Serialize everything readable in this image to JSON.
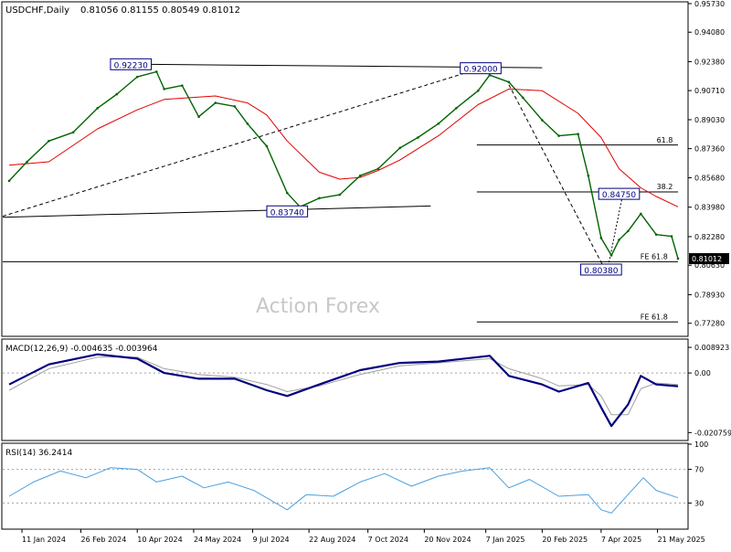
{
  "header": {
    "symbol": "USDCHF,Daily",
    "ohlc": "0.81056 0.81155 0.80549 0.81012"
  },
  "watermark": "Action Forex",
  "colors": {
    "price": "#006400",
    "ma": "#e00000",
    "macd_line": "#000080",
    "macd_signal": "#a0a0a0",
    "rsi": "#4aa0e0",
    "grid_text": "#000000",
    "price_label_bg": "#000000",
    "annotation_box": "#000080"
  },
  "chart_data": [
    {
      "type": "line",
      "panel": "price",
      "title": "USDCHF,Daily",
      "y_ticks": [
        "0.95730",
        "0.94080",
        "0.92380",
        "0.90710",
        "0.89030",
        "0.87360",
        "0.85680",
        "0.83980",
        "0.82280",
        "0.80630",
        "0.78930",
        "0.77280"
      ],
      "y_tick_values": [
        0.9573,
        0.9408,
        0.9238,
        0.9071,
        0.8903,
        0.8736,
        0.8568,
        0.8398,
        0.8228,
        0.8063,
        0.7893,
        0.7728
      ],
      "ylim": [
        0.7658,
        0.9578
      ],
      "x_ticks": [
        "11 Jan 2024",
        "26 Feb 2024",
        "10 Apr 2024",
        "24 May 2024",
        "9 Jul 2024",
        "22 Aug 2024",
        "7 Oct 2024",
        "20 Nov 2024",
        "7 Jan 2025",
        "20 Feb 2025",
        "7 Apr 2025",
        "21 May 2025"
      ],
      "current_price_label": "0.81012",
      "series": [
        {
          "role": "price",
          "x": [
            "2024-01-01",
            "2024-01-15",
            "2024-02-01",
            "2024-02-20",
            "2024-03-10",
            "2024-03-25",
            "2024-04-10",
            "2024-04-25",
            "2024-05-01",
            "2024-05-15",
            "2024-05-28",
            "2024-06-10",
            "2024-06-25",
            "2024-07-05",
            "2024-07-20",
            "2024-08-05",
            "2024-08-15",
            "2024-08-30",
            "2024-09-15",
            "2024-10-01",
            "2024-10-15",
            "2024-11-01",
            "2024-11-15",
            "2024-12-01",
            "2024-12-15",
            "2025-01-01",
            "2025-01-10",
            "2025-01-25",
            "2025-02-05",
            "2025-02-20",
            "2025-03-05",
            "2025-03-20",
            "2025-03-28",
            "2025-04-07",
            "2025-04-15",
            "2025-04-21",
            "2025-04-28",
            "2025-05-08",
            "2025-05-20",
            "2025-06-01",
            "2025-06-06"
          ],
          "values": [
            0.855,
            0.866,
            0.878,
            0.883,
            0.897,
            0.905,
            0.915,
            0.918,
            0.908,
            0.91,
            0.892,
            0.9,
            0.898,
            0.888,
            0.875,
            0.848,
            0.84,
            0.845,
            0.847,
            0.858,
            0.862,
            0.874,
            0.88,
            0.888,
            0.897,
            0.907,
            0.916,
            0.912,
            0.903,
            0.89,
            0.881,
            0.882,
            0.858,
            0.822,
            0.812,
            0.821,
            0.826,
            0.836,
            0.824,
            0.823,
            0.81012
          ]
        },
        {
          "role": "moving-average",
          "x": [
            "2024-01-01",
            "2024-02-01",
            "2024-03-10",
            "2024-04-10",
            "2024-05-01",
            "2024-06-10",
            "2024-07-05",
            "2024-07-20",
            "2024-08-05",
            "2024-08-30",
            "2024-09-15",
            "2024-10-01",
            "2024-10-15",
            "2024-11-01",
            "2024-12-01",
            "2025-01-01",
            "2025-01-25",
            "2025-02-20",
            "2025-03-20",
            "2025-04-07",
            "2025-04-21",
            "2025-05-08",
            "2025-05-20",
            "2025-06-06"
          ],
          "values": [
            0.864,
            0.866,
            0.885,
            0.896,
            0.902,
            0.904,
            0.9,
            0.893,
            0.878,
            0.86,
            0.856,
            0.857,
            0.861,
            0.867,
            0.881,
            0.899,
            0.908,
            0.907,
            0.894,
            0.88,
            0.862,
            0.851,
            0.846,
            0.84
          ]
        }
      ],
      "annotations": [
        {
          "text": "0.92230",
          "x": "2024-04-05",
          "y": 0.9223,
          "kind": "price-box"
        },
        {
          "text": "0.92000",
          "x": "2025-01-03",
          "y": 0.92,
          "kind": "price-box"
        },
        {
          "text": "0.83740",
          "x": "2024-08-05",
          "y": 0.8374,
          "kind": "price-box"
        },
        {
          "text": "0.84750",
          "x": "2025-04-21",
          "y": 0.8475,
          "kind": "price-box"
        },
        {
          "text": "0.80380",
          "x": "2025-04-07",
          "y": 0.8038,
          "kind": "price-box"
        },
        {
          "text": "61.8",
          "x": "2025-06-02",
          "y": 0.8772,
          "kind": "fibo-label"
        },
        {
          "text": "38.2",
          "x": "2025-06-02",
          "y": 0.8503,
          "kind": "fibo-label"
        },
        {
          "text": "FE 61.8",
          "x": "2025-05-29",
          "y": 0.8099,
          "kind": "fibo-label"
        },
        {
          "text": "FE 61.8",
          "x": "2025-05-29",
          "y": 0.7751,
          "kind": "fibo-label"
        }
      ],
      "reference_lines": [
        {
          "from": [
            "2024-04-10",
            0.9223
          ],
          "to": [
            "2025-02-20",
            0.9203
          ],
          "style": "solid",
          "color": "#000000"
        },
        {
          "from": [
            "2023-12-27",
            0.834
          ],
          "to": [
            "2024-11-25",
            0.8405
          ],
          "style": "solid",
          "color": "#000000"
        },
        {
          "from": [
            "2023-12-27",
            0.8346
          ],
          "to": [
            "2025-01-03",
            0.92
          ],
          "style": "dashed",
          "color": "#000000"
        },
        {
          "from": [
            "2025-01-25",
            0.9105
          ],
          "to": [
            "2025-04-10",
            0.8038
          ],
          "style": "dashed",
          "color": "#000000"
        },
        {
          "from": [
            "2025-04-12",
            0.8038
          ],
          "to": [
            "2025-04-24",
            0.8475
          ],
          "style": "dotted",
          "color": "#000000"
        },
        {
          "from": [
            "2024-12-31",
            0.8757
          ],
          "to": [
            "2025-06-06",
            0.8757
          ],
          "style": "solid",
          "color": "#000000"
        },
        {
          "from": [
            "2024-12-31",
            0.8486
          ],
          "to": [
            "2025-06-06",
            0.8486
          ],
          "style": "solid",
          "color": "#000000"
        },
        {
          "from": [
            "2023-12-27",
            0.8083
          ],
          "to": [
            "2025-06-06",
            0.8083
          ],
          "style": "solid",
          "color": "#000000"
        },
        {
          "from": [
            "2024-12-31",
            0.7736
          ],
          "to": [
            "2025-06-06",
            0.7736
          ],
          "style": "solid",
          "color": "#000000"
        }
      ]
    },
    {
      "type": "line",
      "panel": "macd",
      "title": "MACD(12,26,9) -0.004635 -0.003964",
      "y_ticks": [
        "0.008923",
        "0.00",
        "-0.020759"
      ],
      "y_tick_values": [
        0.008923,
        0.0,
        -0.020759
      ],
      "ylim": [
        -0.0232,
        0.0115
      ],
      "x": [
        "2024-01-01",
        "2024-02-01",
        "2024-03-10",
        "2024-04-10",
        "2024-05-01",
        "2024-05-28",
        "2024-06-25",
        "2024-07-20",
        "2024-08-05",
        "2024-08-30",
        "2024-10-01",
        "2024-11-01",
        "2024-12-01",
        "2025-01-10",
        "2025-01-25",
        "2025-02-20",
        "2025-03-05",
        "2025-03-28",
        "2025-04-07",
        "2025-04-15",
        "2025-04-28",
        "2025-05-08",
        "2025-05-20",
        "2025-06-06"
      ],
      "series": [
        {
          "role": "macd",
          "values": [
            -0.004,
            0.003,
            0.0065,
            0.005,
            0.0,
            -0.002,
            -0.002,
            -0.006,
            -0.008,
            -0.004,
            0.001,
            0.0035,
            0.004,
            0.006,
            -0.001,
            -0.004,
            -0.0065,
            -0.0035,
            -0.012,
            -0.0185,
            -0.011,
            -0.001,
            -0.004,
            -0.0046
          ]
        },
        {
          "role": "signal",
          "values": [
            -0.006,
            0.0015,
            0.0055,
            0.0055,
            0.0015,
            -0.0005,
            -0.0015,
            -0.004,
            -0.0065,
            -0.0045,
            -0.0005,
            0.0025,
            0.0035,
            0.005,
            0.0015,
            -0.002,
            -0.0045,
            -0.004,
            -0.008,
            -0.0145,
            -0.0145,
            -0.0055,
            -0.0035,
            -0.004
          ]
        }
      ]
    },
    {
      "type": "line",
      "panel": "rsi",
      "title": "RSI(14) 36.2414",
      "y_ticks": [
        "100",
        "70",
        "30",
        "0"
      ],
      "y_tick_values": [
        100,
        70,
        30,
        0
      ],
      "ylim": [
        0,
        100
      ],
      "x": [
        "2024-01-01",
        "2024-01-20",
        "2024-02-10",
        "2024-03-01",
        "2024-03-20",
        "2024-04-10",
        "2024-04-25",
        "2024-05-15",
        "2024-06-01",
        "2024-06-20",
        "2024-07-10",
        "2024-08-05",
        "2024-08-20",
        "2024-09-10",
        "2024-10-01",
        "2024-10-20",
        "2024-11-10",
        "2024-12-01",
        "2024-12-20",
        "2025-01-10",
        "2025-01-25",
        "2025-02-10",
        "2025-03-05",
        "2025-03-28",
        "2025-04-07",
        "2025-04-15",
        "2025-04-28",
        "2025-05-10",
        "2025-05-20",
        "2025-06-06"
      ],
      "values": [
        38,
        55,
        68,
        60,
        72,
        70,
        55,
        62,
        48,
        55,
        45,
        22,
        40,
        38,
        55,
        65,
        50,
        62,
        68,
        72,
        48,
        58,
        38,
        40,
        22,
        18,
        40,
        60,
        45,
        36.2414
      ]
    }
  ]
}
